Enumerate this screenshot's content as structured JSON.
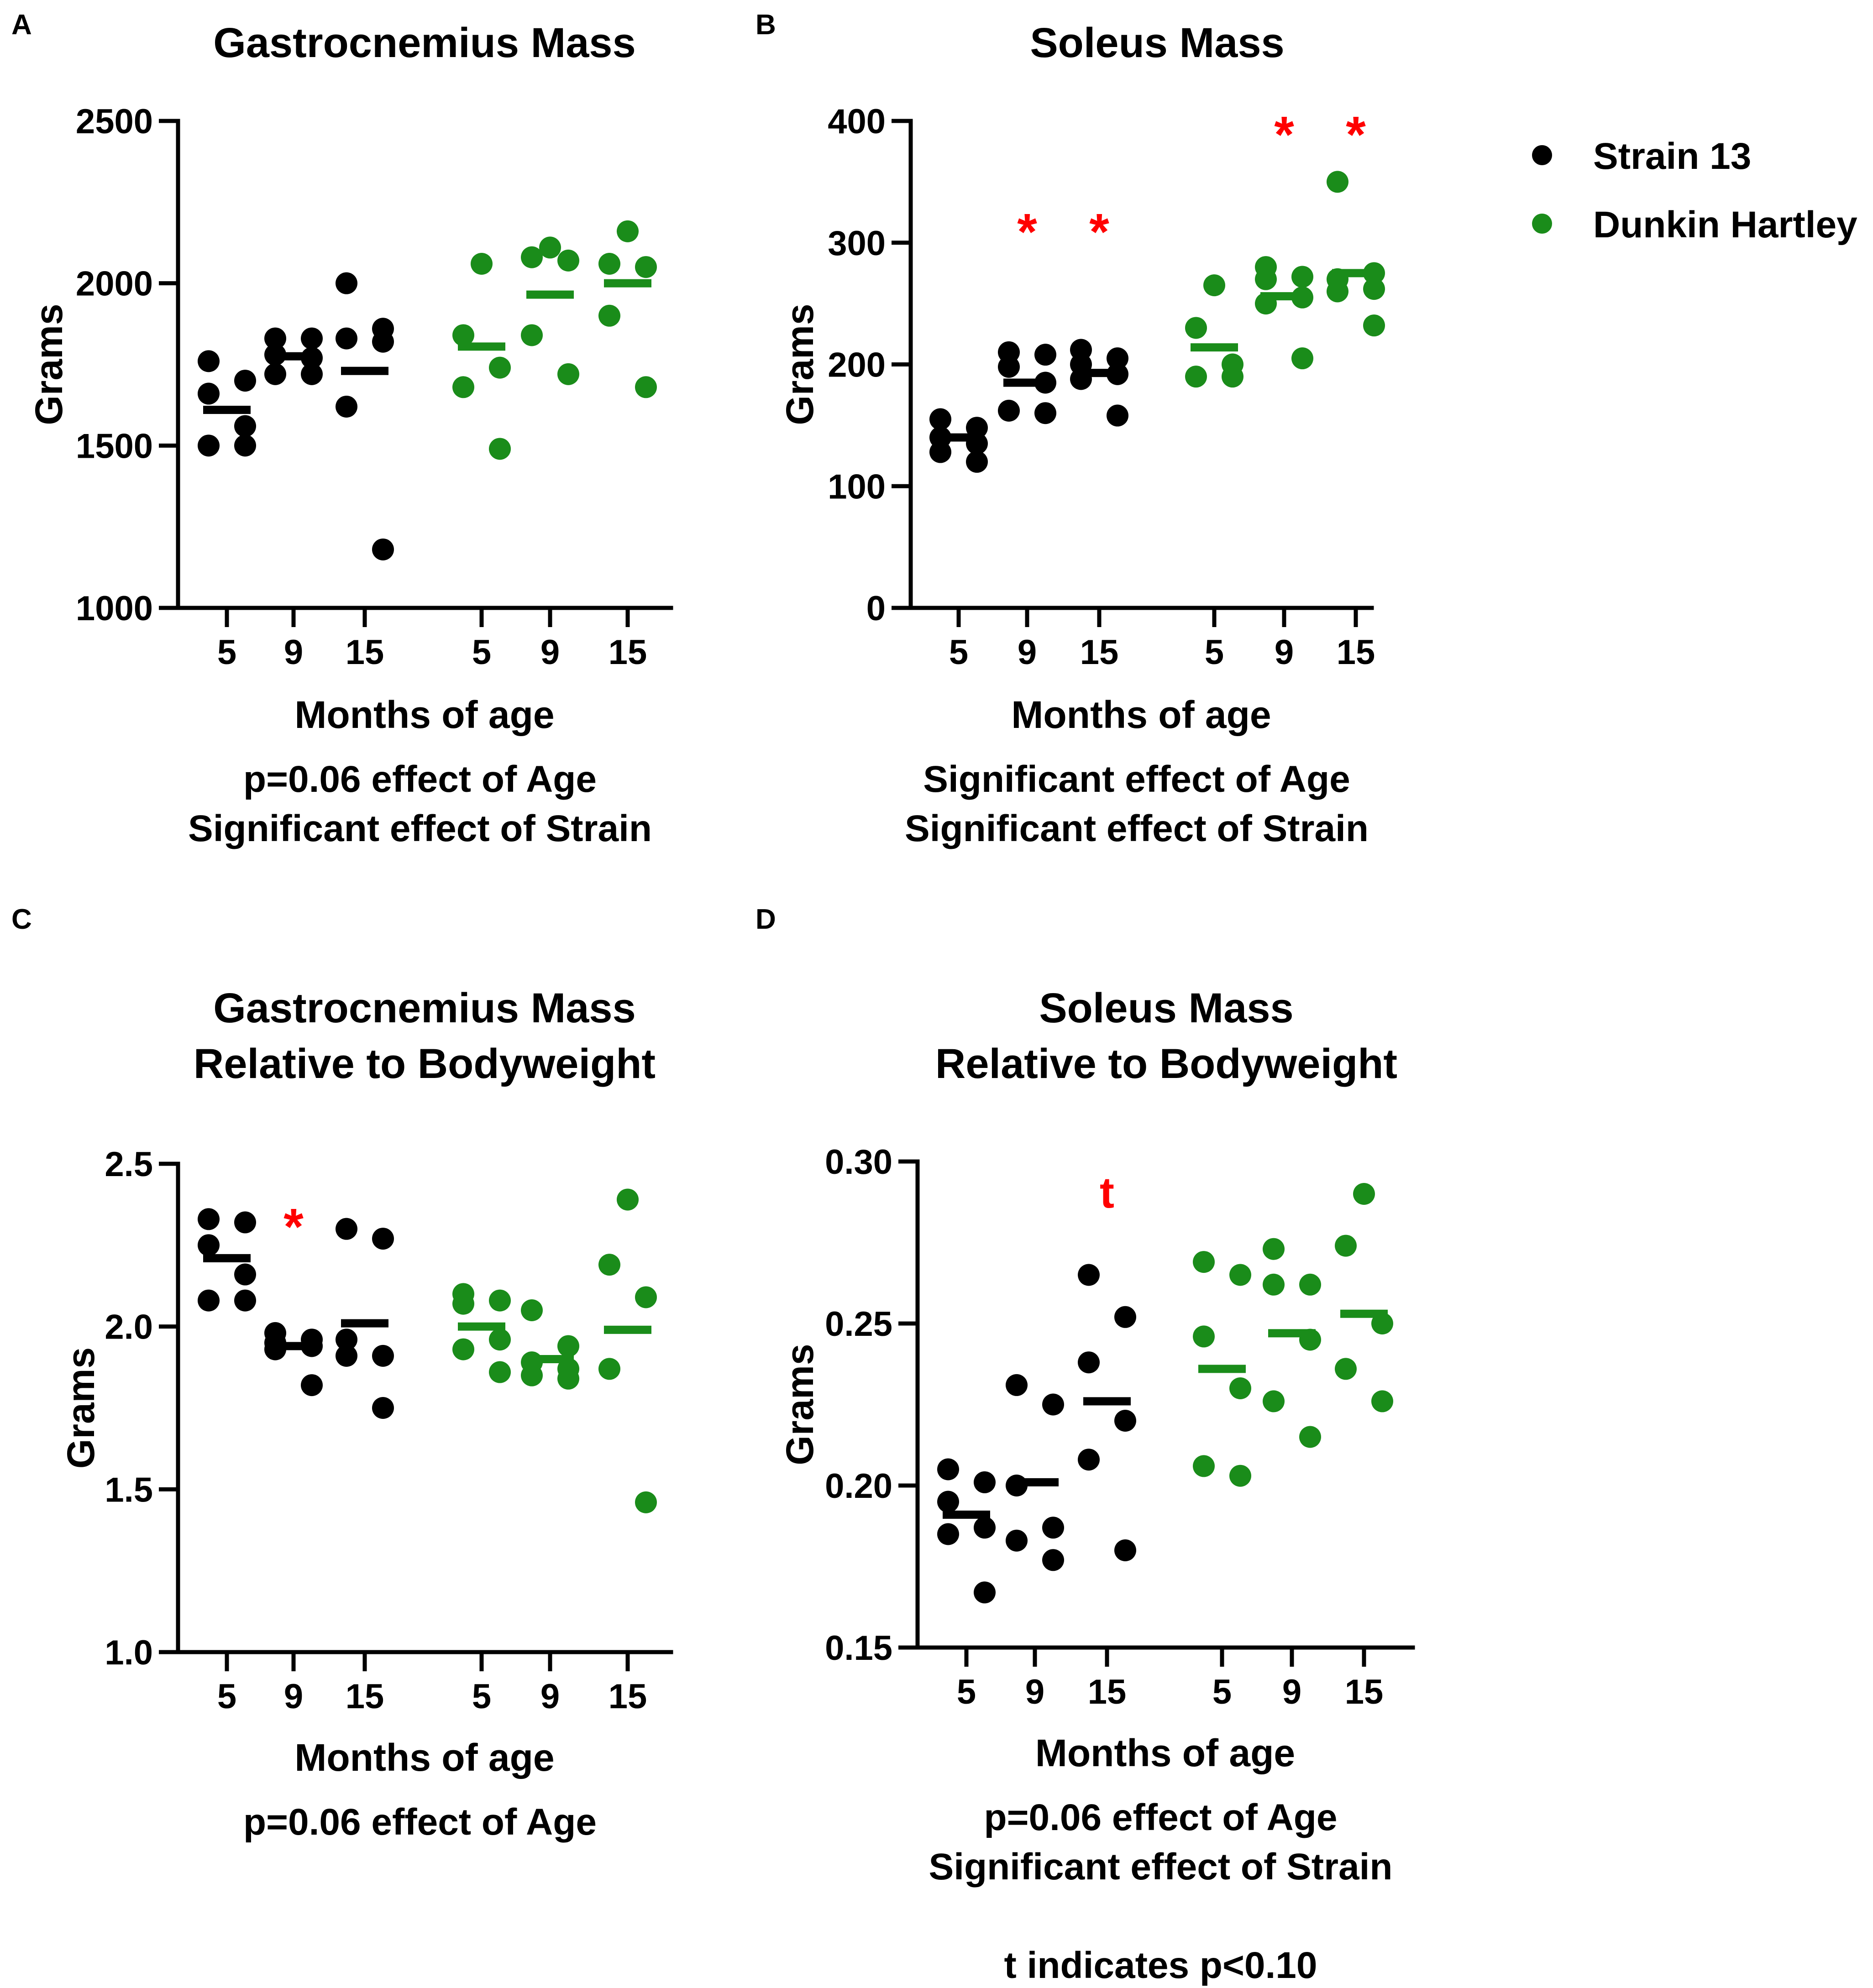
{
  "colors": {
    "strain13": "#000000",
    "dunkin_hartley": "#1a8c1a",
    "significance": "#ff0000"
  },
  "legend": [
    {
      "label": "Strain 13",
      "series": "strain13"
    },
    {
      "label": "Dunkin Hartley",
      "series": "dunkin_hartley"
    }
  ],
  "chart_data": [
    {
      "panel": "A",
      "type": "scatter",
      "title": [
        "Gastrocnemius Mass"
      ],
      "xlabel": "Months of age",
      "ylabel": "Grams",
      "ylim": [
        1000,
        2500
      ],
      "yticks": [
        1000,
        1500,
        2000,
        2500
      ],
      "groups": [
        {
          "series": "strain13",
          "x": "5",
          "values": [
            1760,
            1700,
            1660,
            1560,
            1500,
            1500
          ],
          "mean": 1610
        },
        {
          "series": "strain13",
          "x": "9",
          "values": [
            1830,
            1830,
            1780,
            1770,
            1720,
            1720
          ],
          "mean": 1775
        },
        {
          "series": "strain13",
          "x": "15",
          "values": [
            2000,
            1860,
            1830,
            1820,
            1620,
            1180
          ],
          "mean": 1730
        },
        {
          "series": "dunkin_hartley",
          "x": "5",
          "values": [
            2060,
            1840,
            1740,
            1680,
            1490
          ],
          "mean": 1805
        },
        {
          "series": "dunkin_hartley",
          "x": "9",
          "values": [
            2110,
            2080,
            2070,
            1840,
            1720
          ],
          "mean": 1965
        },
        {
          "series": "dunkin_hartley",
          "x": "15",
          "values": [
            2160,
            2060,
            2050,
            1900,
            1680
          ],
          "mean": 2000
        }
      ],
      "markers": [],
      "notes": [
        "p=0.06 effect of Age",
        "Significant effect of Strain"
      ]
    },
    {
      "panel": "B",
      "type": "scatter",
      "title": [
        "Soleus Mass"
      ],
      "xlabel": "Months of age",
      "ylabel": "Grams",
      "ylim": [
        0,
        400
      ],
      "yticks": [
        0,
        100,
        200,
        300,
        400
      ],
      "groups": [
        {
          "series": "strain13",
          "x": "5",
          "values": [
            155,
            148,
            140,
            135,
            128,
            120
          ],
          "mean": 140
        },
        {
          "series": "strain13",
          "x": "9",
          "values": [
            210,
            208,
            198,
            185,
            162,
            160
          ],
          "mean": 185
        },
        {
          "series": "strain13",
          "x": "15",
          "values": [
            212,
            205,
            200,
            192,
            188,
            158
          ],
          "mean": 193
        },
        {
          "series": "dunkin_hartley",
          "x": "5",
          "values": [
            265,
            230,
            200,
            190,
            190
          ],
          "mean": 214
        },
        {
          "series": "dunkin_hartley",
          "x": "9",
          "values": [
            280,
            272,
            270,
            255,
            250,
            205
          ],
          "mean": 256
        },
        {
          "series": "dunkin_hartley",
          "x": "15",
          "values": [
            350,
            275,
            270,
            262,
            260,
            232
          ],
          "mean": 275
        }
      ],
      "markers": [
        {
          "text": "*",
          "series": "strain13",
          "x": "9",
          "y": 315
        },
        {
          "text": "*",
          "series": "strain13",
          "x": "15",
          "y": 315
        },
        {
          "text": "*",
          "series": "dunkin_hartley",
          "x": "9",
          "y": 395
        },
        {
          "text": "*",
          "series": "dunkin_hartley",
          "x": "15",
          "y": 395
        }
      ],
      "notes": [
        "Significant effect of Age",
        "Significant effect of Strain"
      ]
    },
    {
      "panel": "C",
      "type": "scatter",
      "title": [
        "Gastrocnemius Mass",
        "Relative to Bodyweight"
      ],
      "xlabel": "Months of age",
      "ylabel": "Grams",
      "ylim": [
        1.0,
        2.5
      ],
      "yticks": [
        "1.0",
        "1.5",
        "2.0",
        "2.5"
      ],
      "groups": [
        {
          "series": "strain13",
          "x": "5",
          "values": [
            2.33,
            2.32,
            2.25,
            2.16,
            2.08,
            2.08
          ],
          "mean": 2.21
        },
        {
          "series": "strain13",
          "x": "9",
          "values": [
            1.98,
            1.96,
            1.95,
            1.94,
            1.93,
            1.82
          ],
          "mean": 1.94
        },
        {
          "series": "strain13",
          "x": "15",
          "values": [
            2.3,
            2.27,
            1.96,
            1.91,
            1.91,
            1.75
          ],
          "mean": 2.01
        },
        {
          "series": "dunkin_hartley",
          "x": "5",
          "values": [
            2.1,
            2.08,
            2.07,
            1.96,
            1.93,
            1.86
          ],
          "mean": 2.0
        },
        {
          "series": "dunkin_hartley",
          "x": "9",
          "values": [
            2.05,
            1.94,
            1.89,
            1.87,
            1.85,
            1.84
          ],
          "mean": 1.9
        },
        {
          "series": "dunkin_hartley",
          "x": "15",
          "values": [
            2.39,
            2.19,
            2.09,
            1.87,
            1.46
          ],
          "mean": 1.99
        }
      ],
      "markers": [
        {
          "text": "*",
          "series": "strain13",
          "x": "9",
          "y": 2.33
        }
      ],
      "notes": [
        "p=0.06 effect of Age"
      ]
    },
    {
      "panel": "D",
      "type": "scatter",
      "title": [
        "Soleus Mass",
        "Relative to Bodyweight"
      ],
      "xlabel": "Months of age",
      "ylabel": "Grams",
      "ylim": [
        0.15,
        0.3
      ],
      "yticks": [
        "0.15",
        "0.20",
        "0.25",
        "0.30"
      ],
      "groups": [
        {
          "series": "strain13",
          "x": "5",
          "values": [
            0.205,
            0.201,
            0.195,
            0.187,
            0.185,
            0.167
          ],
          "mean": 0.191
        },
        {
          "series": "strain13",
          "x": "9",
          "values": [
            0.231,
            0.225,
            0.2,
            0.187,
            0.183,
            0.177
          ],
          "mean": 0.201
        },
        {
          "series": "strain13",
          "x": "15",
          "values": [
            0.265,
            0.252,
            0.238,
            0.22,
            0.208,
            0.18
          ],
          "mean": 0.226
        },
        {
          "series": "dunkin_hartley",
          "x": "5",
          "values": [
            0.269,
            0.265,
            0.246,
            0.23,
            0.206,
            0.203
          ],
          "mean": 0.236
        },
        {
          "series": "dunkin_hartley",
          "x": "9",
          "values": [
            0.273,
            0.262,
            0.262,
            0.245,
            0.226,
            0.215
          ],
          "mean": 0.247
        },
        {
          "series": "dunkin_hartley",
          "x": "15",
          "values": [
            0.29,
            0.274,
            0.25,
            0.236,
            0.226
          ],
          "mean": 0.253
        }
      ],
      "markers": [
        {
          "text": "t",
          "series": "strain13",
          "x": "15",
          "y": 0.29
        }
      ],
      "notes": [
        "p=0.06 effect of Age",
        "Significant effect of Strain",
        "",
        "t indicates p<0.10"
      ]
    }
  ]
}
